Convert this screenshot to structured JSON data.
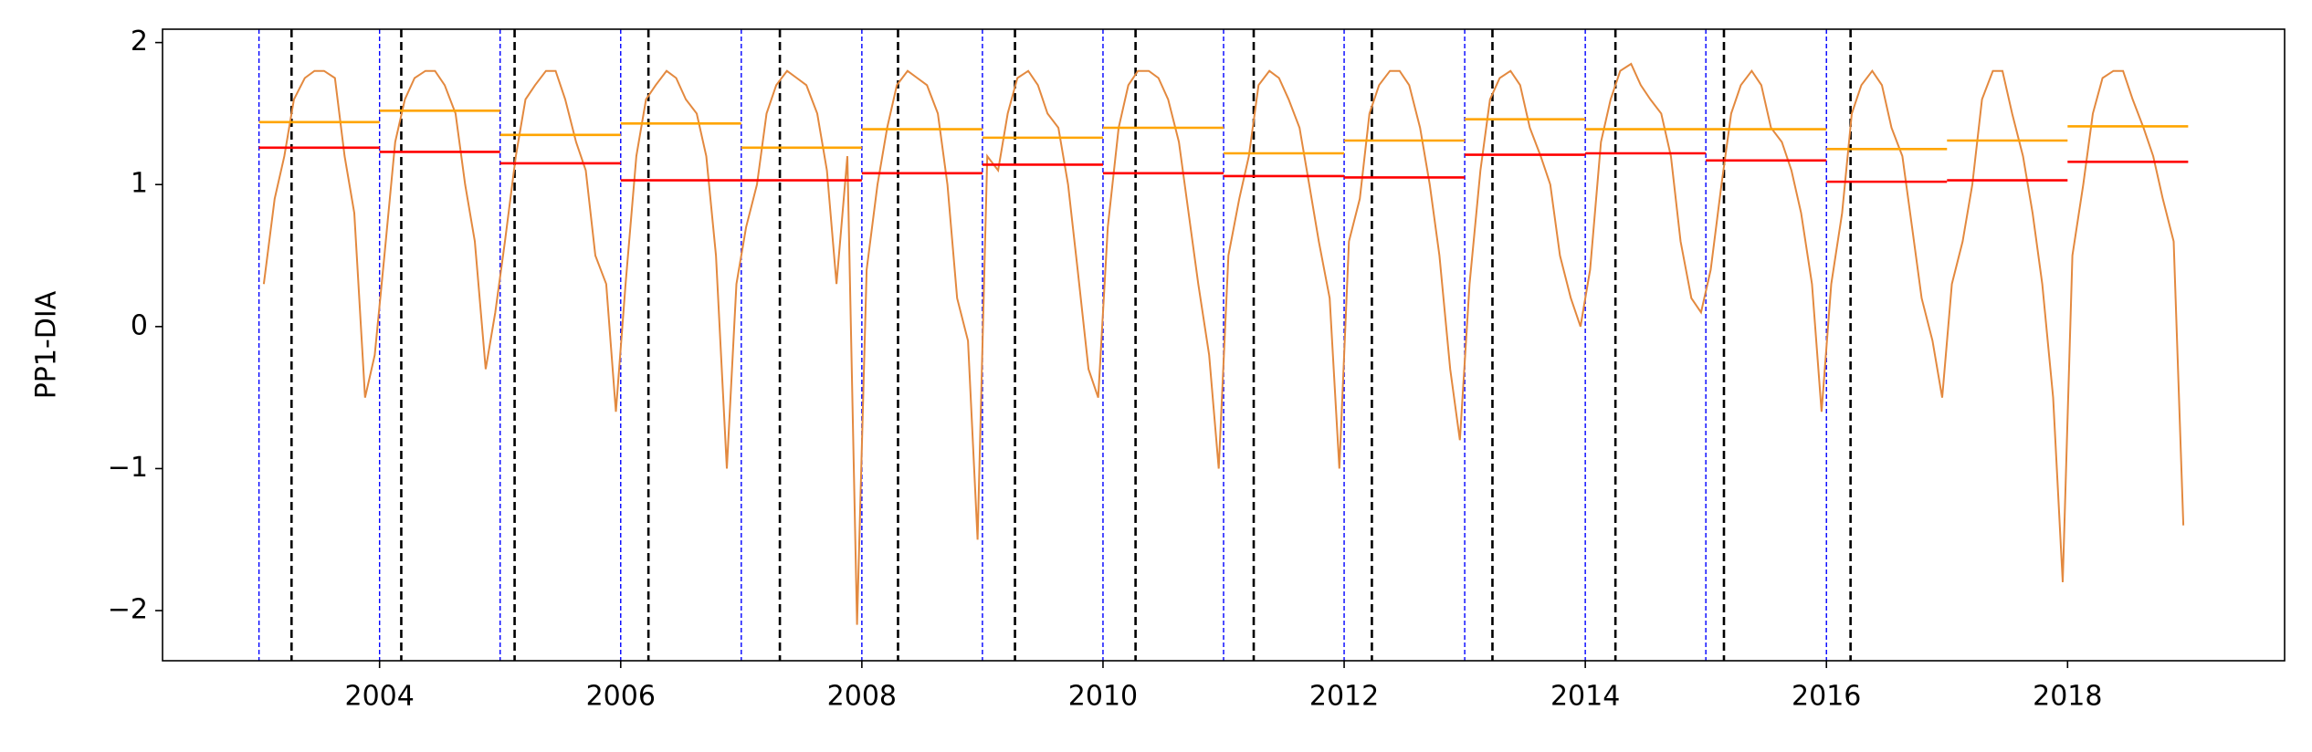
{
  "chart_data": {
    "type": "line",
    "ylabel": "PP1-DIA",
    "xlim": [
      2002.2,
      2019.8
    ],
    "ylim": [
      -2.353,
      2.094
    ],
    "xticks": [
      2004,
      2006,
      2008,
      2010,
      2012,
      2014,
      2016,
      2018
    ],
    "yticks": [
      {
        "value": -2,
        "label": "−2"
      },
      {
        "value": -1,
        "label": "−1"
      },
      0,
      1,
      2
    ],
    "x": [
      2003.04,
      2003.13,
      2003.21,
      2003.29,
      2003.38,
      2003.46,
      2003.54,
      2003.63,
      2003.71,
      2003.79,
      2003.88,
      2003.96,
      2004.04,
      2004.13,
      2004.21,
      2004.29,
      2004.38,
      2004.46,
      2004.54,
      2004.63,
      2004.71,
      2004.79,
      2004.88,
      2004.96,
      2005.04,
      2005.13,
      2005.21,
      2005.29,
      2005.38,
      2005.46,
      2005.54,
      2005.63,
      2005.71,
      2005.79,
      2005.88,
      2005.96,
      2006.04,
      2006.13,
      2006.21,
      2006.29,
      2006.38,
      2006.46,
      2006.54,
      2006.63,
      2006.71,
      2006.79,
      2006.88,
      2006.96,
      2007.04,
      2007.13,
      2007.21,
      2007.29,
      2007.38,
      2007.46,
      2007.54,
      2007.63,
      2007.71,
      2007.79,
      2007.88,
      2007.96,
      2008.04,
      2008.13,
      2008.21,
      2008.29,
      2008.38,
      2008.46,
      2008.54,
      2008.63,
      2008.71,
      2008.79,
      2008.88,
      2008.96,
      2009.04,
      2009.13,
      2009.21,
      2009.29,
      2009.38,
      2009.46,
      2009.54,
      2009.63,
      2009.71,
      2009.79,
      2009.88,
      2009.96,
      2010.04,
      2010.13,
      2010.21,
      2010.29,
      2010.38,
      2010.46,
      2010.54,
      2010.63,
      2010.71,
      2010.79,
      2010.88,
      2010.96,
      2011.04,
      2011.13,
      2011.21,
      2011.29,
      2011.38,
      2011.46,
      2011.54,
      2011.63,
      2011.71,
      2011.79,
      2011.88,
      2011.96,
      2012.04,
      2012.13,
      2012.21,
      2012.29,
      2012.38,
      2012.46,
      2012.54,
      2012.63,
      2012.71,
      2012.79,
      2012.88,
      2012.96,
      2013.04,
      2013.13,
      2013.21,
      2013.29,
      2013.38,
      2013.46,
      2013.54,
      2013.63,
      2013.71,
      2013.79,
      2013.88,
      2013.96,
      2014.04,
      2014.13,
      2014.21,
      2014.29,
      2014.38,
      2014.46,
      2014.54,
      2014.63,
      2014.71,
      2014.79,
      2014.88,
      2014.96,
      2015.04,
      2015.13,
      2015.21,
      2015.29,
      2015.38,
      2015.46,
      2015.54,
      2015.63,
      2015.71,
      2015.79,
      2015.88,
      2015.96,
      2016.04,
      2016.13,
      2016.21,
      2016.29,
      2016.38,
      2016.46,
      2016.54,
      2016.63,
      2016.71,
      2016.79,
      2016.88,
      2016.96,
      2017.04,
      2017.13,
      2017.21,
      2017.29,
      2017.38,
      2017.46,
      2017.54,
      2017.63,
      2017.71,
      2017.79,
      2017.88,
      2017.96,
      2018.04,
      2018.13,
      2018.21,
      2018.29,
      2018.38,
      2018.46,
      2018.54,
      2018.63,
      2018.71,
      2018.79,
      2018.88,
      2018.96
    ],
    "series": [
      {
        "color": "#e3893f",
        "values": [
          0.3,
          0.9,
          1.2,
          1.6,
          1.75,
          1.8,
          1.8,
          1.75,
          1.2,
          0.8,
          -0.5,
          -0.2,
          0.5,
          1.3,
          1.6,
          1.75,
          1.8,
          1.8,
          1.7,
          1.5,
          1.0,
          0.6,
          -0.3,
          0.1,
          0.6,
          1.2,
          1.6,
          1.7,
          1.8,
          1.8,
          1.6,
          1.3,
          1.1,
          0.5,
          0.3,
          -0.6,
          0.3,
          1.2,
          1.6,
          1.7,
          1.8,
          1.75,
          1.6,
          1.5,
          1.2,
          0.5,
          -1.0,
          0.3,
          0.7,
          1.0,
          1.5,
          1.7,
          1.8,
          1.75,
          1.7,
          1.5,
          1.1,
          0.3,
          1.2,
          -2.1,
          0.4,
          1.0,
          1.4,
          1.7,
          1.8,
          1.75,
          1.7,
          1.5,
          1.0,
          0.2,
          -0.1,
          -1.5,
          1.2,
          1.1,
          1.5,
          1.75,
          1.8,
          1.7,
          1.5,
          1.4,
          1.0,
          0.4,
          -0.3,
          -0.5,
          0.7,
          1.4,
          1.7,
          1.8,
          1.8,
          1.75,
          1.6,
          1.3,
          0.8,
          0.3,
          -0.2,
          -1.0,
          0.5,
          0.9,
          1.2,
          1.7,
          1.8,
          1.75,
          1.6,
          1.4,
          1.0,
          0.6,
          0.2,
          -1.0,
          0.6,
          0.9,
          1.5,
          1.7,
          1.8,
          1.8,
          1.7,
          1.4,
          1.0,
          0.5,
          -0.3,
          -0.8,
          0.3,
          1.1,
          1.6,
          1.75,
          1.8,
          1.7,
          1.4,
          1.2,
          1.0,
          0.5,
          0.2,
          0.0,
          0.4,
          1.3,
          1.6,
          1.8,
          1.85,
          1.7,
          1.6,
          1.5,
          1.2,
          0.6,
          0.2,
          0.1,
          0.4,
          1.0,
          1.5,
          1.7,
          1.8,
          1.7,
          1.4,
          1.3,
          1.1,
          0.8,
          0.3,
          -0.6,
          0.3,
          0.8,
          1.5,
          1.7,
          1.8,
          1.7,
          1.4,
          1.2,
          0.7,
          0.2,
          -0.1,
          -0.5,
          0.3,
          0.6,
          1.0,
          1.6,
          1.8,
          1.8,
          1.5,
          1.2,
          0.8,
          0.3,
          -0.5,
          -1.8,
          0.5,
          1.0,
          1.5,
          1.75,
          1.8,
          1.8,
          1.6,
          1.4,
          1.2,
          0.9,
          0.6,
          -1.4
        ]
      }
    ],
    "levels": [
      {
        "color": "#ffa500",
        "x0": [
          2003,
          2004,
          2005,
          2006,
          2007,
          2008,
          2009,
          2010,
          2011,
          2012,
          2013,
          2014,
          2015,
          2016,
          2017,
          2018
        ],
        "x1": [
          2004,
          2005,
          2006,
          2007,
          2008,
          2009,
          2010,
          2011,
          2012,
          2013,
          2014,
          2015,
          2016,
          2017,
          2018,
          2019
        ],
        "values": [
          1.44,
          1.52,
          1.35,
          1.43,
          1.26,
          1.39,
          1.33,
          1.4,
          1.22,
          1.31,
          1.46,
          1.39,
          1.39,
          1.25,
          1.31,
          1.41
        ]
      },
      {
        "color": "#ff0000",
        "x0": [
          2003,
          2004,
          2005,
          2006,
          2007,
          2008,
          2009,
          2010,
          2011,
          2012,
          2013,
          2014,
          2015,
          2016,
          2017,
          2018
        ],
        "x1": [
          2004,
          2005,
          2006,
          2007,
          2008,
          2009,
          2010,
          2011,
          2012,
          2013,
          2014,
          2015,
          2016,
          2017,
          2018,
          2019
        ],
        "values": [
          1.26,
          1.23,
          1.15,
          1.03,
          1.03,
          1.08,
          1.14,
          1.08,
          1.06,
          1.05,
          1.21,
          1.22,
          1.17,
          1.02,
          1.03,
          1.16
        ]
      }
    ],
    "vlines": [
      {
        "color": "#0000ff",
        "dash": "dense",
        "x": [
          2003,
          2004,
          2005,
          2006,
          2007,
          2008,
          2009,
          2010,
          2011,
          2012,
          2013,
          2014,
          2015,
          2016
        ]
      },
      {
        "color": "#000000",
        "dash": "wide",
        "x": [
          2003.27,
          2004.18,
          2005.12,
          2006.23,
          2007.32,
          2008.3,
          2009.27,
          2010.27,
          2011.25,
          2012.23,
          2013.23,
          2014.25,
          2015.15,
          2016.2
        ]
      }
    ]
  }
}
